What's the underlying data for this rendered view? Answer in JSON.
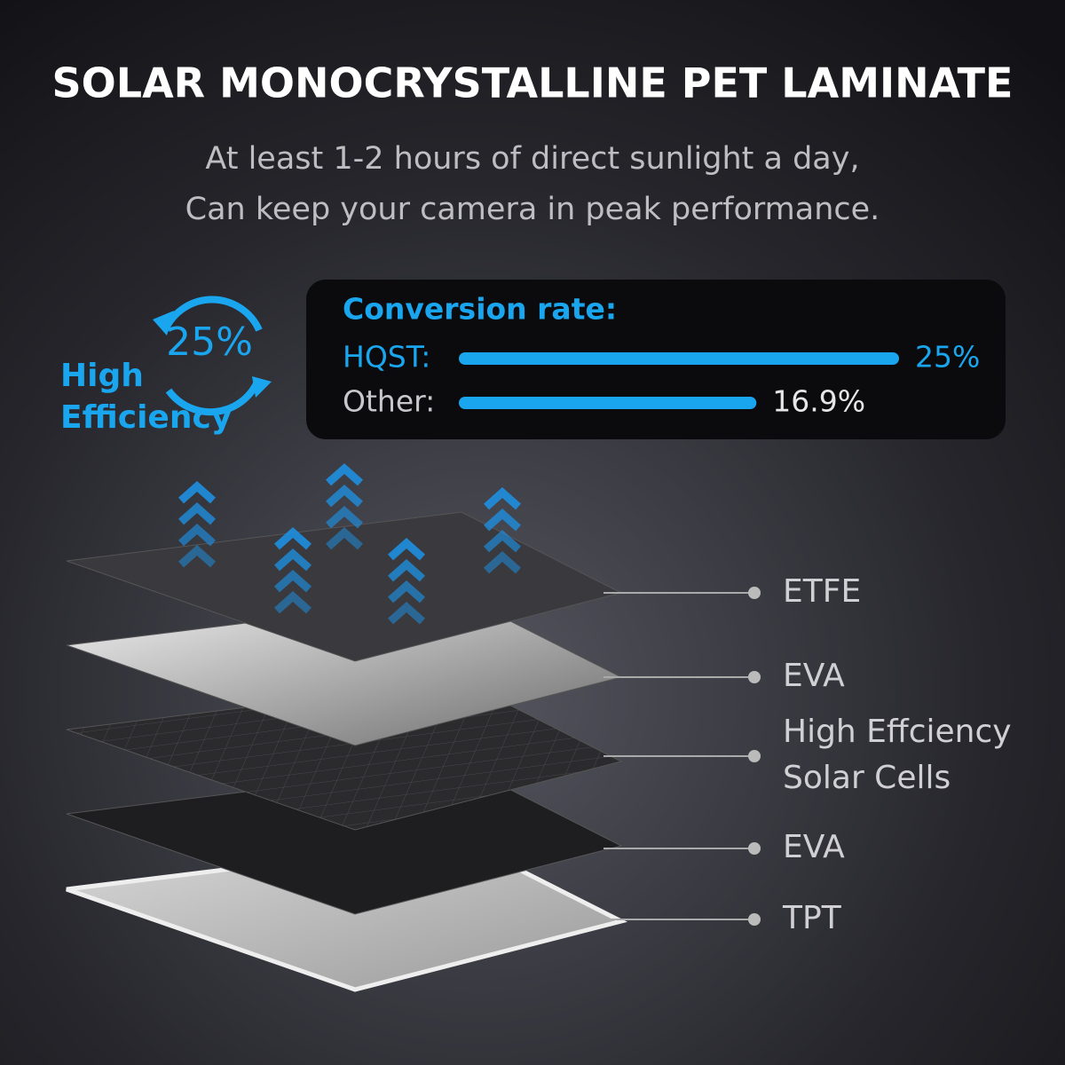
{
  "header": {
    "title": "SOLAR MONOCRYSTALLINE PET LAMINATE",
    "subtitle": [
      "At least 1-2 hours of direct sunlight a day,",
      "Can keep your camera in peak performance."
    ]
  },
  "badge": {
    "value_label": "25%",
    "text": [
      "High",
      "Efficiency"
    ]
  },
  "conversion": {
    "title": "Conversion rate:",
    "items": [
      {
        "name": "HQST:",
        "value": 25,
        "value_label": "25%",
        "color": "#1aa6ef"
      },
      {
        "name": "Other:",
        "value": 16.9,
        "value_label": "16.9%",
        "color": "#1aa6ef"
      }
    ]
  },
  "layers": [
    {
      "label": [
        "ETFE"
      ]
    },
    {
      "label": [
        "EVA"
      ]
    },
    {
      "label": [
        "High Effciency",
        "Solar Cells"
      ]
    },
    {
      "label": [
        "EVA"
      ]
    },
    {
      "label": [
        "TPT"
      ]
    }
  ]
}
